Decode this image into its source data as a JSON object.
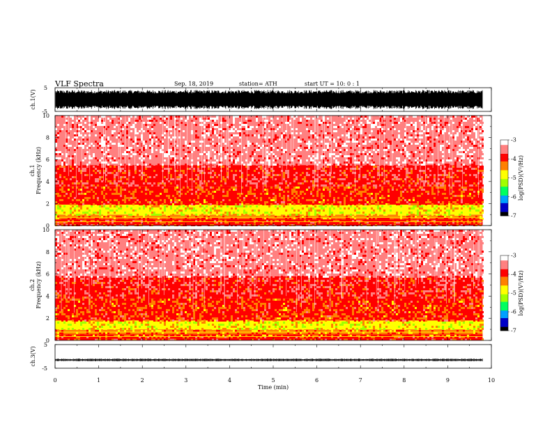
{
  "header": {
    "title": "VLF Spectra",
    "date": "Sep. 18, 2019",
    "station": "station= ATH",
    "start_ut": "start UT =   10: 0  : 1"
  },
  "chart_data": [
    {
      "type": "line",
      "panel": "ch1-waveform",
      "ylabel": "ch.1(V)",
      "ylim": [
        -5,
        5
      ],
      "yticks": [
        "5",
        "-5"
      ],
      "description_values": "dense broadband waveform filling approx -4 V to +4 V over 0 to 9.8 min"
    },
    {
      "type": "heatmap",
      "panel": "ch1-spectrogram",
      "ylabel": "ch.1\nFrequency (kHz)",
      "ylabel_lines": [
        "ch.1",
        "Frequency (kHz)"
      ],
      "ylim": [
        0,
        10
      ],
      "yticks": [
        "0",
        "2",
        "4",
        "6",
        "8",
        "10"
      ],
      "x_range_min": [
        0,
        9.8
      ],
      "bands": [
        {
          "f_low": 0,
          "f_high": 0.6,
          "level": -4.0
        },
        {
          "f_low": 0.6,
          "f_high": 1.0,
          "level": -4.2
        },
        {
          "f_low": 1.0,
          "f_high": 1.9,
          "level": -4.8
        },
        {
          "f_low": 1.9,
          "f_high": 3.6,
          "level": -4.1
        },
        {
          "f_low": 3.6,
          "f_high": 5.5,
          "level": -3.8
        },
        {
          "f_low": 5.5,
          "f_high": 10,
          "level": -3.4
        }
      ],
      "colorbar": {
        "label": "log(PSD)(V²/Hz)",
        "range": [
          -7,
          -3
        ],
        "ticks": [
          "-3",
          "-4",
          "-5",
          "-6",
          "-7"
        ]
      }
    },
    {
      "type": "heatmap",
      "panel": "ch2-spectrogram",
      "ylabel_lines": [
        "ch.2",
        "Frequency (kHz)"
      ],
      "ylim": [
        0,
        10
      ],
      "yticks": [
        "0",
        "2",
        "4",
        "6",
        "8",
        "10"
      ],
      "x_range_min": [
        0,
        9.8
      ],
      "bands": [
        {
          "f_low": 0,
          "f_high": 0.5,
          "level": -4.0
        },
        {
          "f_low": 0.5,
          "f_high": 1.0,
          "level": -4.3
        },
        {
          "f_low": 1.0,
          "f_high": 1.8,
          "level": -4.8
        },
        {
          "f_low": 1.8,
          "f_high": 3.8,
          "level": -4.1
        },
        {
          "f_low": 3.8,
          "f_high": 5.8,
          "level": -3.8
        },
        {
          "f_low": 5.8,
          "f_high": 10,
          "level": -3.4
        }
      ],
      "colorbar": {
        "label": "log(PSD)(V²/Hz)",
        "range": [
          -7,
          -3
        ],
        "ticks": [
          "-3",
          "-4",
          "-5",
          "-6",
          "-7"
        ]
      }
    },
    {
      "type": "line",
      "panel": "ch3-waveform",
      "ylabel": "ch.3(V)",
      "ylim": [
        -5,
        5
      ],
      "yticks": [
        "5",
        "-5"
      ],
      "description_values": "narrow trace near -1.5 V with small fluctuations over 0 to 9.8 min"
    }
  ],
  "x_axis": {
    "xlabel": "Time (min)",
    "xlim": [
      0,
      10
    ],
    "ticks": [
      "0",
      "1",
      "2",
      "3",
      "4",
      "5",
      "6",
      "7",
      "8",
      "9",
      "10"
    ]
  },
  "colors": {
    "colormap": [
      "#000000",
      "#0000c8",
      "#00a0ff",
      "#00ff60",
      "#a0ff00",
      "#ffff00",
      "#ff8000",
      "#ff0000",
      "#ff8080",
      "#ffffff"
    ]
  }
}
